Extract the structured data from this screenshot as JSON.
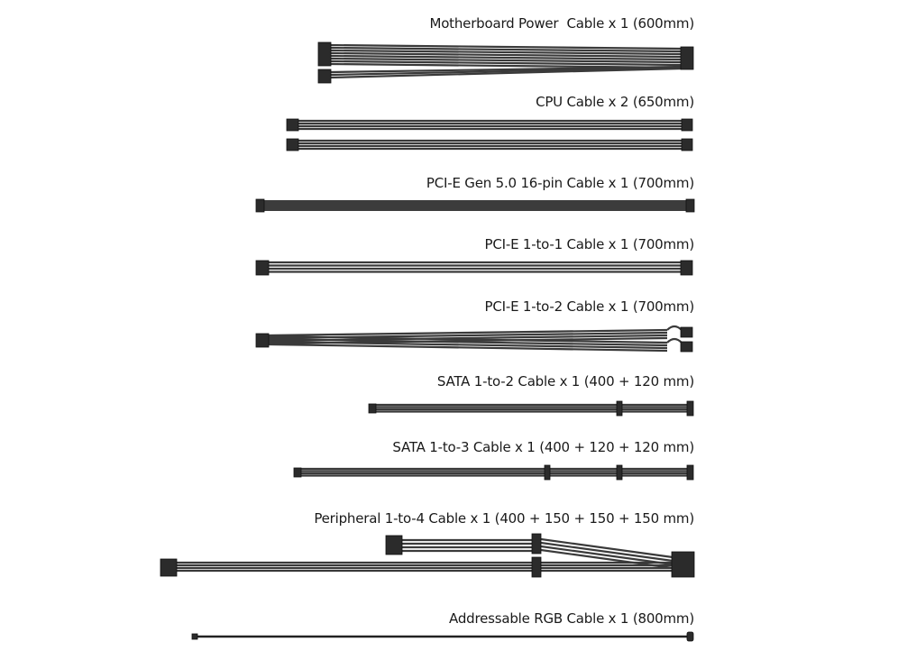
{
  "cables": [
    {
      "label": "Motherboard Power  Cable x 1 (600mm)"
    },
    {
      "label": "CPU Cable x 2 (650mm)"
    },
    {
      "label": "PCI-E Gen 5.0 16-pin Cable x 1 (700mm)"
    },
    {
      "label": "PCI-E 1-to-1 Cable x 1 (700mm)"
    },
    {
      "label": "PCI-E 1-to-2 Cable x 1 (700mm)"
    },
    {
      "label": "SATA 1-to-2 Cable x 1 (400 + 120 mm)"
    },
    {
      "label": "SATA 1-to-3 Cable x 1 (400 + 120 + 120 mm)"
    },
    {
      "label": "Peripheral 1-to-4 Cable x 1 (400 + 150 + 150 + 150 mm)"
    },
    {
      "label": "Addressable RGB Cable x 1 (800mm)"
    }
  ],
  "colors": {
    "cable": "#3a3a3a",
    "connector": "#2b2b2b",
    "text": "#1a1a1a"
  }
}
